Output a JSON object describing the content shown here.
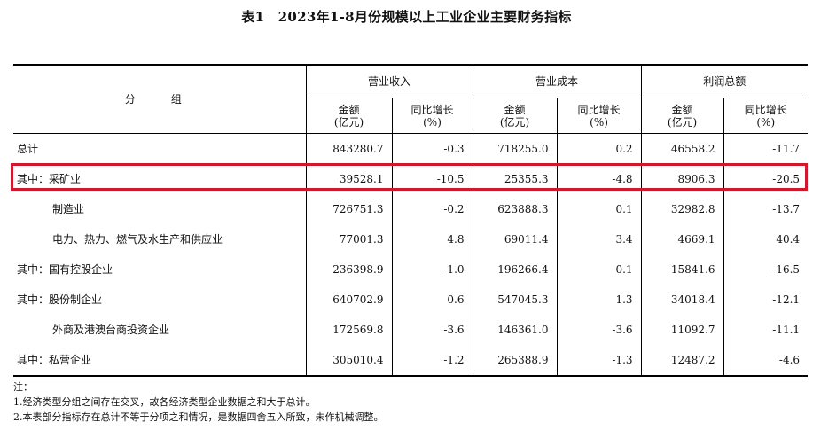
{
  "title": "表1　2023年1-8月份规模以上工业企业主要财务指标",
  "header": {
    "group_label": "分　组",
    "revenue": "营业收入",
    "cost": "营业成本",
    "profit": "利润总额",
    "amount_line1": "金额",
    "amount_line2": "(亿元)",
    "growth_line1": "同比增长",
    "growth_line2": "(%)"
  },
  "rows": [
    {
      "label": "总计",
      "indent": false,
      "rev": "843280.7",
      "rev_g": "-0.3",
      "cost": "718255.0",
      "cost_g": "0.2",
      "profit": "46558.2",
      "profit_g": "-11.7"
    },
    {
      "label": "其中：采矿业",
      "indent": false,
      "rev": "39528.1",
      "rev_g": "-10.5",
      "cost": "25355.3",
      "cost_g": "-4.8",
      "profit": "8906.3",
      "profit_g": "-20.5"
    },
    {
      "label": "制造业",
      "indent": true,
      "rev": "726751.3",
      "rev_g": "-0.2",
      "cost": "623888.3",
      "cost_g": "0.1",
      "profit": "32982.8",
      "profit_g": "-13.7"
    },
    {
      "label": "电力、热力、燃气及水生产和供应业",
      "indent": true,
      "rev": "77001.3",
      "rev_g": "4.8",
      "cost": "69011.4",
      "cost_g": "3.4",
      "profit": "4669.1",
      "profit_g": "40.4"
    },
    {
      "label": "其中：国有控股企业",
      "indent": false,
      "rev": "236398.9",
      "rev_g": "-1.0",
      "cost": "196266.4",
      "cost_g": "0.1",
      "profit": "15841.6",
      "profit_g": "-16.5"
    },
    {
      "label": "其中：股份制企业",
      "indent": false,
      "rev": "640702.9",
      "rev_g": "0.6",
      "cost": "547045.3",
      "cost_g": "1.3",
      "profit": "34018.4",
      "profit_g": "-12.1"
    },
    {
      "label": "外商及港澳台商投资企业",
      "indent": true,
      "rev": "172569.8",
      "rev_g": "-3.6",
      "cost": "146361.0",
      "cost_g": "-3.6",
      "profit": "11092.7",
      "profit_g": "-11.1"
    },
    {
      "label": "其中：私营企业",
      "indent": false,
      "rev": "305010.4",
      "rev_g": "-1.2",
      "cost": "265388.9",
      "cost_g": "-1.3",
      "profit": "12487.2",
      "profit_g": "-4.6"
    }
  ],
  "notes": {
    "heading": "注：",
    "items": [
      "1.经济类型分组之间存在交叉，故各经济类型企业数据之和大于总计。",
      "2.本表部分指标存在总计不等于分项之和情况，是数据四舍五入所致，未作机械调整。"
    ]
  },
  "colors": {
    "highlight_border": "#d0192d",
    "rule": "#000000"
  }
}
